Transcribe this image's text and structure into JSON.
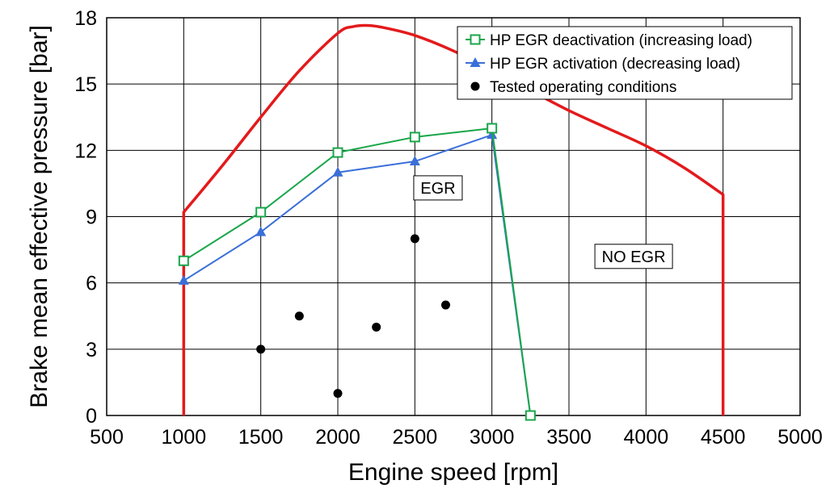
{
  "chart_data": {
    "type": "line",
    "xlabel": "Engine speed [rpm]",
    "ylabel": "Brake mean effective pressure [bar]",
    "xlim": [
      500,
      5000
    ],
    "ylim": [
      0,
      18
    ],
    "x_ticks": [
      500,
      1000,
      1500,
      2000,
      2500,
      3000,
      3500,
      4000,
      4500,
      5000
    ],
    "y_ticks": [
      0,
      3,
      6,
      9,
      12,
      15,
      18
    ],
    "grid": true,
    "legend_position": "top-right",
    "colors": {
      "envelope": "#e31a1c",
      "deactivation": "#1aa64a",
      "activation": "#3a6fd8",
      "points": "#000000"
    },
    "envelope": {
      "x": [
        1000,
        1000,
        1250,
        1500,
        1750,
        2000,
        2100,
        2200,
        2300,
        2500,
        2750,
        3000,
        3250,
        3500,
        3750,
        4000,
        4250,
        4500,
        4500
      ],
      "y": [
        0,
        9.2,
        11.3,
        13.5,
        15.6,
        17.3,
        17.6,
        17.65,
        17.55,
        17.2,
        16.5,
        15.6,
        14.7,
        13.8,
        13.0,
        12.2,
        11.2,
        10.0,
        0
      ]
    },
    "series": [
      {
        "name": "HP EGR deactivation (increasing load)",
        "marker": "square",
        "x": [
          1000,
          1500,
          2000,
          2500,
          3000,
          3250
        ],
        "y": [
          7.0,
          9.2,
          11.9,
          12.6,
          13.0,
          0
        ]
      },
      {
        "name": "HP EGR activation (decreasing load)",
        "marker": "triangle",
        "x": [
          1000,
          1500,
          2000,
          2500,
          3000,
          3250
        ],
        "y": [
          6.1,
          8.3,
          11.0,
          11.5,
          12.7,
          0
        ]
      },
      {
        "name": "Tested operating conditions",
        "marker": "circle",
        "x": [
          1500,
          1750,
          2000,
          2250,
          2500,
          2700
        ],
        "y": [
          3.0,
          4.5,
          1.0,
          4.0,
          8.0,
          5.0
        ]
      }
    ],
    "annotations": [
      {
        "text": "EGR",
        "x": 2650,
        "y": 10.3
      },
      {
        "text": "NO EGR",
        "x": 3920,
        "y": 7.2
      }
    ]
  }
}
